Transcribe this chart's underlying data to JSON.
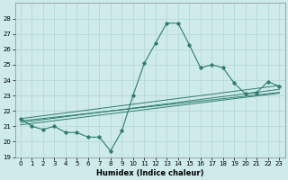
{
  "x": [
    0,
    1,
    2,
    3,
    4,
    5,
    6,
    7,
    8,
    9,
    10,
    11,
    12,
    13,
    14,
    15,
    16,
    17,
    18,
    19,
    20,
    21,
    22,
    23
  ],
  "y_main": [
    21.5,
    21.0,
    20.8,
    21.0,
    20.6,
    20.6,
    20.3,
    20.3,
    19.4,
    20.7,
    23.0,
    25.1,
    26.4,
    27.7,
    27.7,
    26.3,
    24.8,
    25.0,
    24.8,
    23.8,
    23.1,
    23.2,
    23.9,
    23.6
  ],
  "reg_lines": [
    {
      "x0": 0,
      "y0": 21.5,
      "x1": 23,
      "y1": 23.65
    },
    {
      "x0": 0,
      "y0": 21.35,
      "x1": 23,
      "y1": 23.2
    },
    {
      "x0": 0,
      "y0": 21.25,
      "x1": 23,
      "y1": 23.4
    },
    {
      "x0": 0,
      "y0": 21.1,
      "x1": 23,
      "y1": 23.15
    }
  ],
  "line_color": "#2e7d6e",
  "bg_color": "#ceeaea",
  "grid_color": "#b8d8d8",
  "xlabel": "Humidex (Indice chaleur)",
  "ylim": [
    19,
    29
  ],
  "xlim": [
    -0.5,
    23.5
  ],
  "yticks": [
    19,
    20,
    21,
    22,
    23,
    24,
    25,
    26,
    27,
    28
  ],
  "xticks": [
    0,
    1,
    2,
    3,
    4,
    5,
    6,
    7,
    8,
    9,
    10,
    11,
    12,
    13,
    14,
    15,
    16,
    17,
    18,
    19,
    20,
    21,
    22,
    23
  ],
  "tick_fontsize": 5.0,
  "xlabel_fontsize": 6.0
}
